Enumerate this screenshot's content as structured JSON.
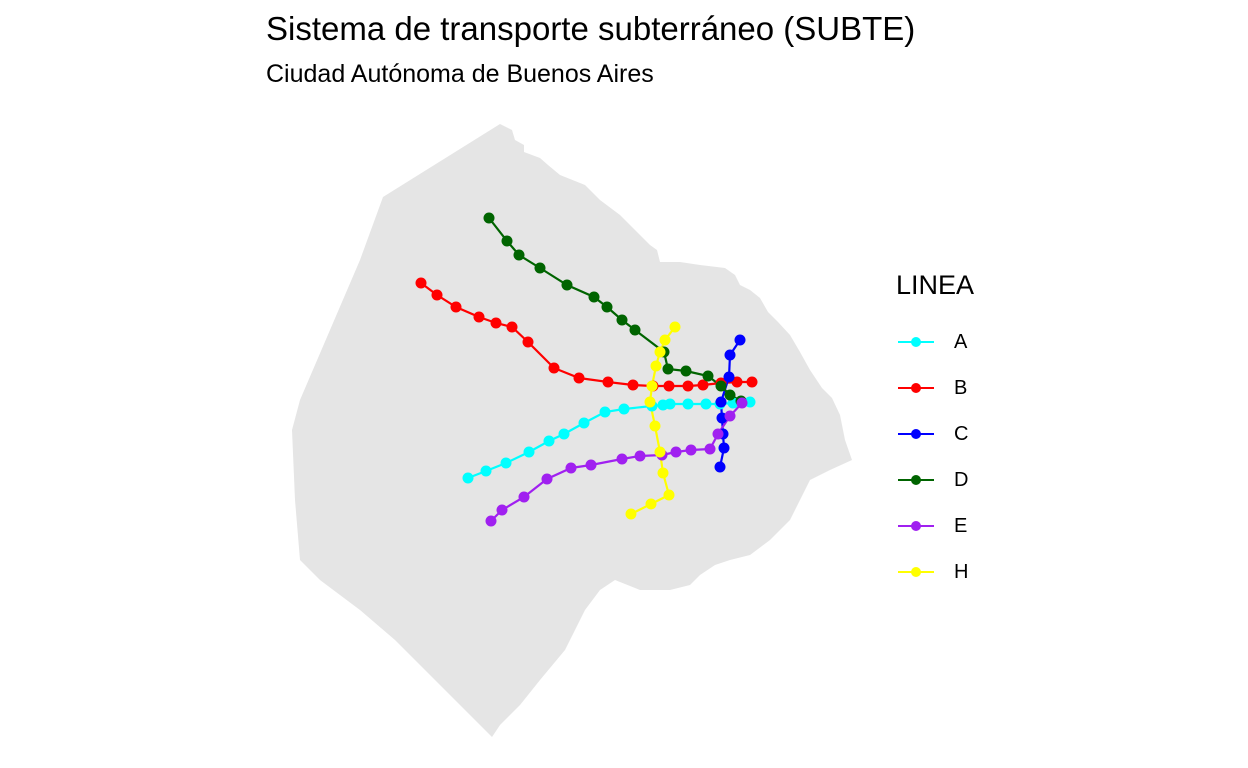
{
  "title": "Sistema de transporte subterráneo (SUBTE)",
  "subtitle": "Ciudad Autónoma de Buenos Aires",
  "legend": {
    "title": "LINEA",
    "items": [
      {
        "label": "A",
        "color": "#00FFFF"
      },
      {
        "label": "B",
        "color": "#FF0000"
      },
      {
        "label": "C",
        "color": "#0000FF"
      },
      {
        "label": "D",
        "color": "#006400"
      },
      {
        "label": "E",
        "color": "#A020F0"
      },
      {
        "label": "H",
        "color": "#FFFF00"
      }
    ]
  },
  "map_colors": {
    "land": "#E5E5E5"
  }
}
